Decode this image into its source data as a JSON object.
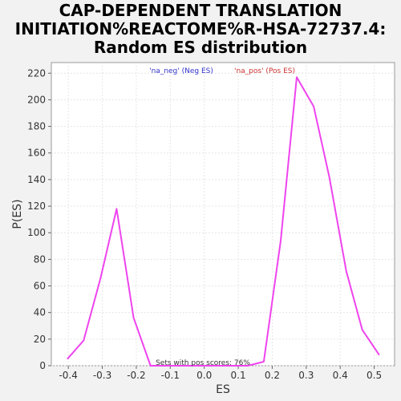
{
  "title_lines": [
    "CAP-DEPENDENT TRANSLATION",
    "INITIATION%REACTOME%R-HSA-72737.4:",
    "Random ES distribution"
  ],
  "chart_data": {
    "type": "line",
    "xlabel": "ES",
    "ylabel": "P(ES)",
    "xlim": [
      -0.45,
      0.56
    ],
    "ylim": [
      0,
      228
    ],
    "xticks": [
      -0.4,
      -0.3,
      -0.2,
      -0.1,
      0.0,
      0.1,
      0.2,
      0.3,
      0.4,
      0.5
    ],
    "xtick_labels": [
      "-0.4",
      "-0.3",
      "-0.2",
      "-0.1",
      "0.0",
      "0.1",
      "0.2",
      "0.3",
      "0.4",
      "0.5"
    ],
    "yticks": [
      0,
      20,
      40,
      60,
      80,
      100,
      120,
      140,
      160,
      180,
      200,
      220
    ],
    "ytick_labels": [
      "0",
      "20",
      "40",
      "60",
      "80",
      "100",
      "120",
      "140",
      "160",
      "180",
      "200",
      "220"
    ],
    "grid": true,
    "line_color": "#ee44ee",
    "legend": [
      {
        "label": "'na_neg' (Neg ES)",
        "color": "#3333cc"
      },
      {
        "label": "'na_pos' (Pos ES)",
        "color": "#cc3333"
      }
    ],
    "annotation": "Sets with pos scores: 76%",
    "series": [
      {
        "x": [
          -0.403,
          -0.355,
          -0.305,
          -0.258,
          -0.208,
          -0.158,
          -0.108,
          -0.058,
          -0.008,
          0.042,
          0.092,
          0.128,
          0.175,
          0.225,
          0.272,
          0.322,
          0.368,
          0.418,
          0.465,
          0.515
        ],
        "y": [
          5,
          19,
          66,
          118,
          36,
          0,
          0,
          0,
          0,
          0,
          0,
          0,
          3,
          94,
          217,
          195,
          142,
          71,
          27,
          8
        ]
      }
    ]
  }
}
